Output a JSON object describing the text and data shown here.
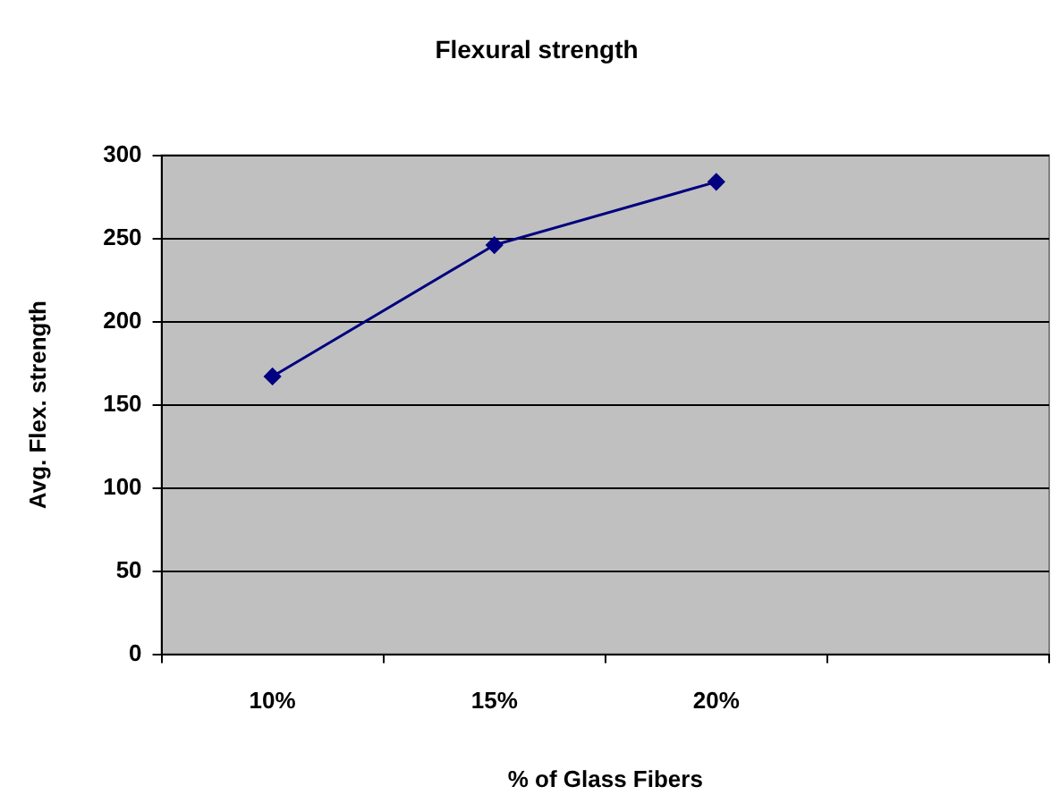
{
  "chart_data": {
    "type": "line",
    "title": "Flexural strength",
    "xlabel": "% of Glass Fibers",
    "ylabel": "Avg. Flex. strength",
    "categories": [
      "10%",
      "15%",
      "20%",
      null
    ],
    "series": [
      {
        "color": "#000080",
        "values": [
          167,
          246,
          284,
          null
        ]
      }
    ],
    "ylim": [
      0,
      300
    ],
    "yticks": [
      0,
      50,
      100,
      150,
      200,
      250,
      300
    ],
    "grid": "y",
    "legend": false,
    "marker": "diamond",
    "line_style": "solid"
  }
}
